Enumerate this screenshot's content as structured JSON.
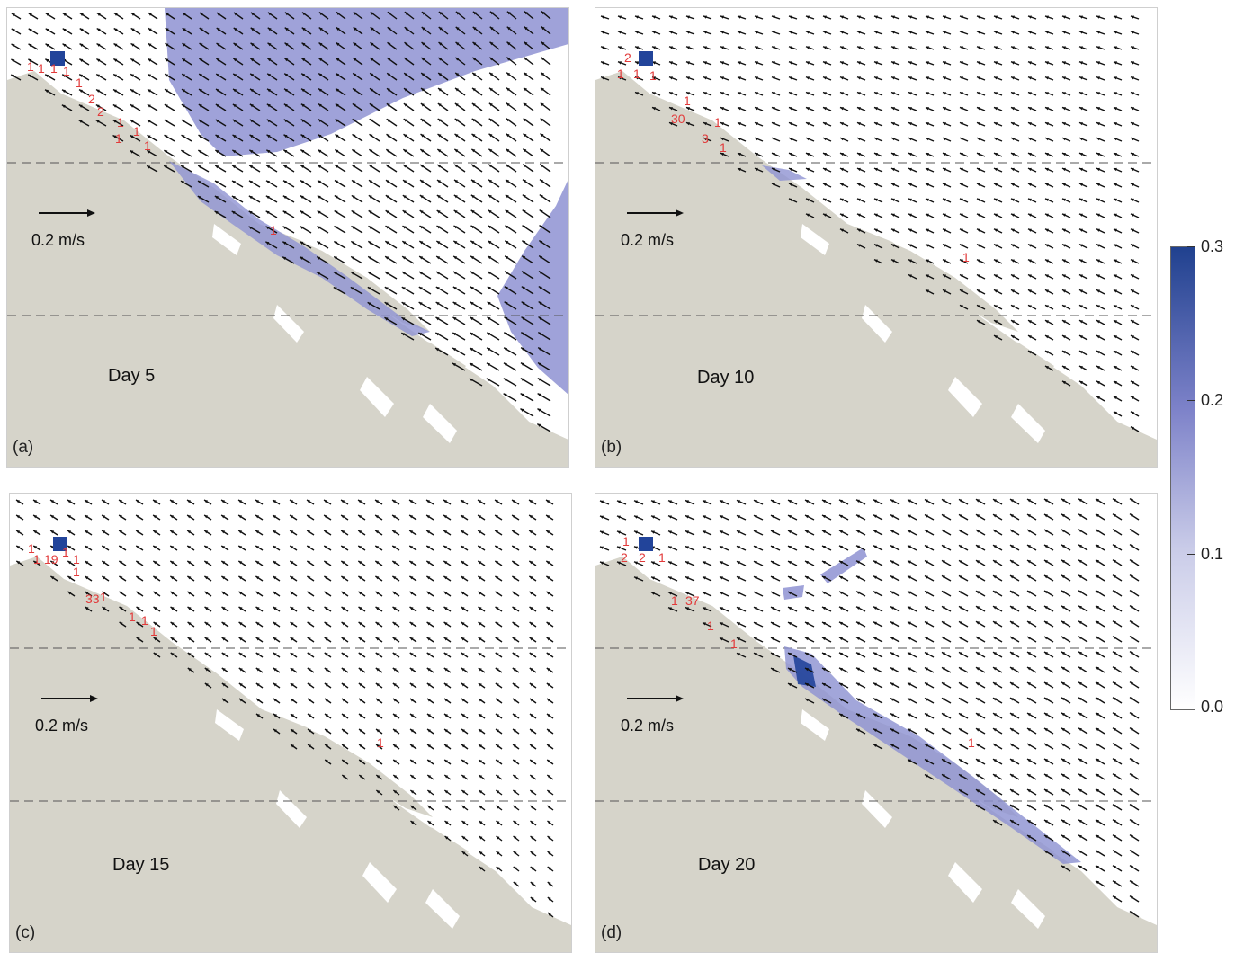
{
  "panels": [
    {
      "id": "a",
      "label": "(a)",
      "day": "Day 5",
      "scale": "0.2 m/s",
      "counts": [
        "1",
        "1",
        "1",
        "1",
        "1",
        "2",
        "2",
        "1",
        "1",
        "1",
        "1"
      ],
      "far_count": "1"
    },
    {
      "id": "b",
      "label": "(b)",
      "day": "Day 10",
      "scale": "0.2 m/s",
      "counts": [
        "2",
        "1",
        "1",
        "1",
        "30",
        "1",
        "3",
        "1",
        "1"
      ],
      "far_count": "1"
    },
    {
      "id": "c",
      "label": "(c)",
      "day": "Day 15",
      "scale": "0.2 m/s",
      "counts": [
        "1",
        "1",
        "19",
        "1",
        "1",
        "1",
        "33",
        "1",
        "1",
        "1",
        "1"
      ],
      "far_count": "1"
    },
    {
      "id": "d",
      "label": "(d)",
      "day": "Day 20",
      "scale": "0.2 m/s",
      "counts": [
        "1",
        "2",
        "2",
        "1",
        "1",
        "37",
        "1",
        "1"
      ],
      "far_count": "1"
    }
  ],
  "colorbar": {
    "ticks": [
      "0.3",
      "0.2",
      "0.1",
      "0.0"
    ],
    "colors": {
      "low": "#ffffff",
      "mid": "#8a8fcf",
      "high": "#20418f"
    }
  },
  "colors": {
    "land": "#d6d4ca",
    "water": "#ffffff",
    "plume": "#8e92d2",
    "source": "#22449a",
    "arrows": "#111111",
    "counts": "#e23a3a",
    "dashed": "#555555"
  }
}
